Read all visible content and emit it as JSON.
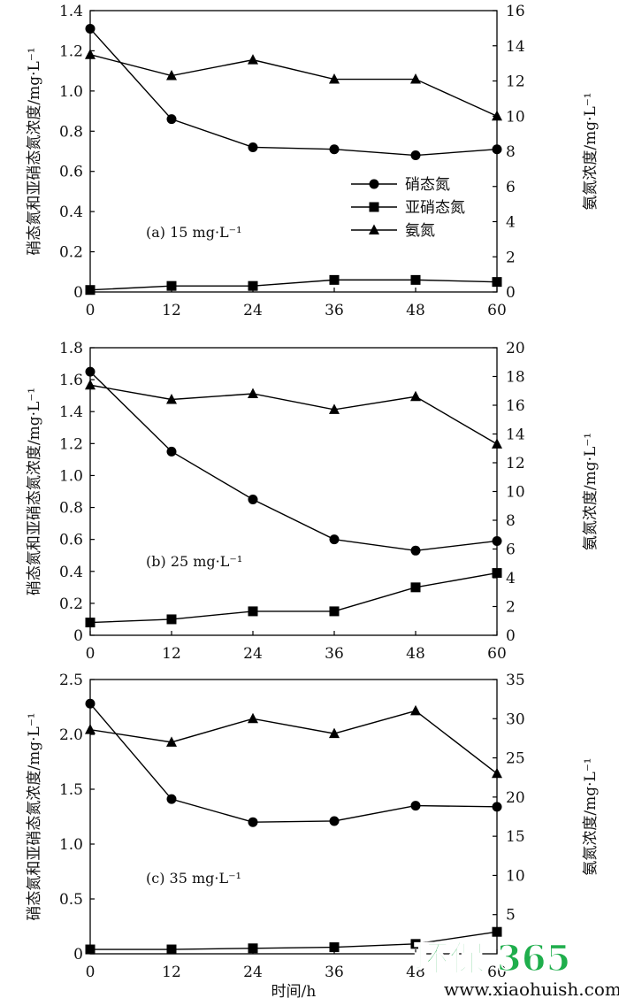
{
  "chart_data": [
    {
      "type": "line",
      "annotation": "(a) 15 mg·L⁻¹",
      "x": [
        0,
        12,
        24,
        36,
        48,
        60
      ],
      "xticks": [
        "0",
        "12",
        "24",
        "36",
        "48",
        "60"
      ],
      "ylabel_left": "硝态氮和亚硝态氮浓度/mg·L⁻¹",
      "ylabel_right": "氨氮浓度/mg·L⁻¹",
      "ylim_left": [
        0,
        1.4
      ],
      "yticks_left": [
        "0",
        "0.2",
        "0.4",
        "0.6",
        "0.8",
        "1.0",
        "1.2",
        "1.4"
      ],
      "ylim_right": [
        0,
        16
      ],
      "yticks_right": [
        "0",
        "2",
        "4",
        "6",
        "8",
        "10",
        "12",
        "14",
        "16"
      ],
      "series": [
        {
          "name": "硝态氮",
          "marker": "circle",
          "axis": "left",
          "values": [
            1.31,
            0.86,
            0.72,
            0.71,
            0.68,
            0.71
          ]
        },
        {
          "name": "亚硝态氮",
          "marker": "square",
          "axis": "left",
          "values": [
            0.01,
            0.03,
            0.03,
            0.06,
            0.06,
            0.05
          ]
        },
        {
          "name": "氨氮",
          "marker": "triangle",
          "axis": "right",
          "values": [
            13.5,
            12.3,
            13.2,
            12.1,
            12.1,
            10.0
          ]
        }
      ],
      "legend": [
        "硝态氮",
        "亚硝态氮",
        "氨氮"
      ],
      "legend_position": "center-right"
    },
    {
      "type": "line",
      "annotation": "(b) 25 mg·L⁻¹",
      "x": [
        0,
        12,
        24,
        36,
        48,
        60
      ],
      "xticks": [
        "0",
        "12",
        "24",
        "36",
        "48",
        "60"
      ],
      "ylabel_left": "硝态氮和亚硝态氮浓度/mg·L⁻¹",
      "ylabel_right": "氨氮浓度/mg·L⁻¹",
      "ylim_left": [
        0,
        1.8
      ],
      "yticks_left": [
        "0",
        "0.2",
        "0.4",
        "0.6",
        "0.8",
        "1.0",
        "1.2",
        "1.4",
        "1.6",
        "1.8"
      ],
      "ylim_right": [
        0,
        20
      ],
      "yticks_right": [
        "0",
        "2",
        "4",
        "6",
        "8",
        "10",
        "12",
        "14",
        "16",
        "18",
        "20"
      ],
      "series": [
        {
          "name": "硝态氮",
          "marker": "circle",
          "axis": "left",
          "values": [
            1.65,
            1.15,
            0.85,
            0.6,
            0.53,
            0.59
          ]
        },
        {
          "name": "亚硝态氮",
          "marker": "square",
          "axis": "left",
          "values": [
            0.08,
            0.1,
            0.15,
            0.15,
            0.3,
            0.39
          ]
        },
        {
          "name": "氨氮",
          "marker": "triangle",
          "axis": "right",
          "values": [
            17.4,
            16.4,
            16.8,
            15.7,
            16.6,
            13.3
          ]
        }
      ]
    },
    {
      "type": "line",
      "annotation": "(c) 35 mg·L⁻¹",
      "x": [
        0,
        12,
        24,
        36,
        48,
        60
      ],
      "xticks": [
        "0",
        "12",
        "24",
        "36",
        "48",
        "60"
      ],
      "xlabel": "时间/h",
      "ylabel_left": "硝态氮和亚硝态氮浓度/mg·L⁻¹",
      "ylabel_right": "氨氮浓度/mg·L⁻¹",
      "ylim_left": [
        0,
        2.5
      ],
      "yticks_left": [
        "0",
        "0.5",
        "1.0",
        "1.5",
        "2.0",
        "2.5"
      ],
      "ylim_right": [
        0,
        35
      ],
      "yticks_right": [
        "5",
        "10",
        "15",
        "20",
        "25",
        "30",
        "35"
      ],
      "series": [
        {
          "name": "硝态氮",
          "marker": "circle",
          "axis": "left",
          "values": [
            2.28,
            1.41,
            1.2,
            1.21,
            1.35,
            1.34
          ]
        },
        {
          "name": "亚硝态氮",
          "marker": "square",
          "axis": "left",
          "values": [
            0.04,
            0.04,
            0.05,
            0.06,
            0.09,
            0.2
          ]
        },
        {
          "name": "氨氮",
          "marker": "triangle",
          "axis": "right",
          "values": [
            28.6,
            27.0,
            30.0,
            28.1,
            31.0,
            23.0
          ]
        }
      ]
    }
  ],
  "watermark": {
    "logo_text": "环保 365",
    "url": "www.xiaohuish.com",
    "color": "#1fae4c"
  }
}
